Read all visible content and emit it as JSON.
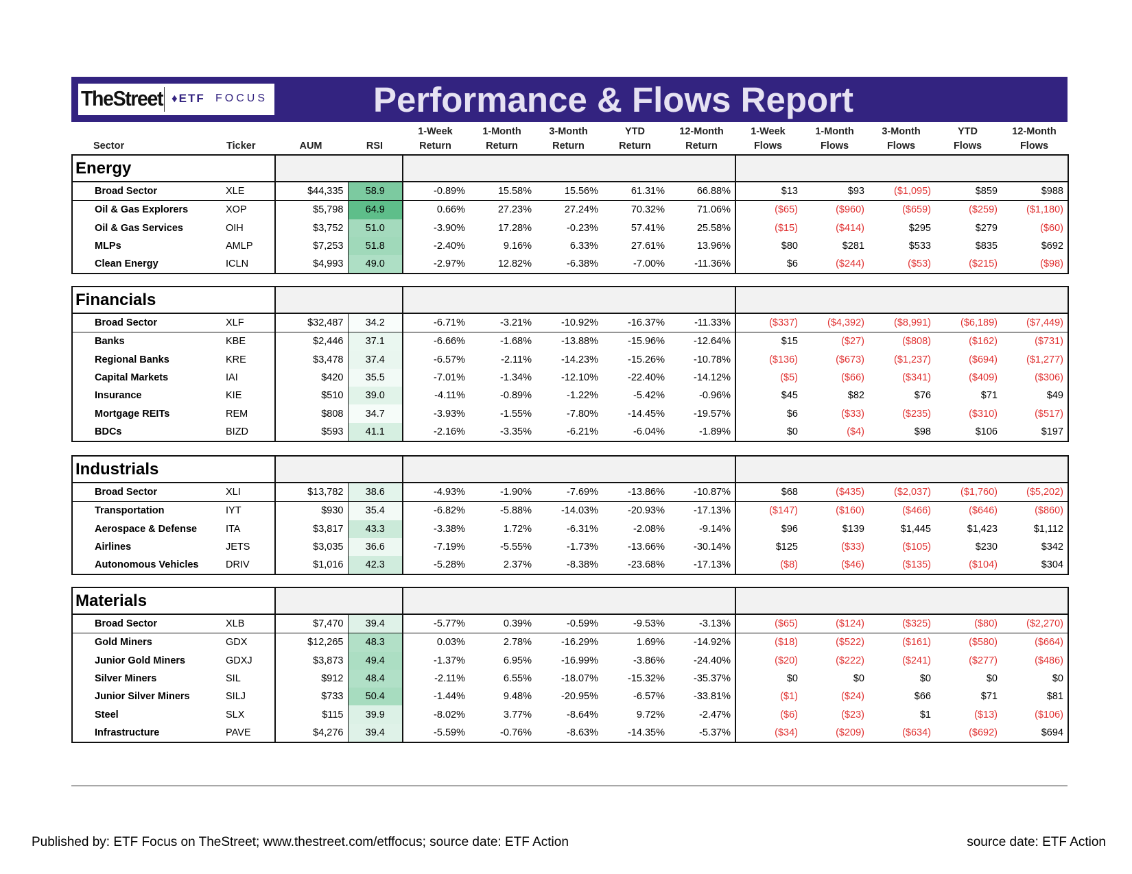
{
  "header": {
    "brand": "TheStreet",
    "partner_mark": "♦ETF",
    "partner_suffix": "FOCUS",
    "title": "Performance & Flows Report"
  },
  "columns": [
    "Sector",
    "Ticker",
    "AUM",
    "RSI",
    "1-Week Return",
    "1-Month Return",
    "3-Month Return",
    "YTD Return",
    "12-Month Return",
    "1-Week Flows",
    "1-Month Flows",
    "3-Month Flows",
    "YTD Flows",
    "12-Month Flows"
  ],
  "column_lines": [
    [
      "",
      "Sector"
    ],
    [
      "",
      "Ticker"
    ],
    [
      "",
      "AUM"
    ],
    [
      "",
      "RSI"
    ],
    [
      "1-Week",
      "Return"
    ],
    [
      "1-Month",
      "Return"
    ],
    [
      "3-Month",
      "Return"
    ],
    [
      "YTD",
      "Return"
    ],
    [
      "12-Month",
      "Return"
    ],
    [
      "1-Week",
      "Flows"
    ],
    [
      "1-Month",
      "Flows"
    ],
    [
      "3-Month",
      "Flows"
    ],
    [
      "YTD",
      "Flows"
    ],
    [
      "12-Month",
      "Flows"
    ]
  ],
  "rsi_color_scale": {
    "low": "#ffffff",
    "high": "#5dbe8a"
  },
  "negative_color": "#e03030",
  "sections": [
    {
      "name": "Energy",
      "rows": [
        [
          "Broad Sector",
          "XLE",
          "$44,335",
          "58.9",
          "-0.89%",
          "15.58%",
          "15.56%",
          "61.31%",
          "66.88%",
          "$13",
          "$93",
          "($1,095)",
          "$859",
          "$988"
        ],
        [
          "Oil & Gas Explorers",
          "XOP",
          "$5,798",
          "64.9",
          "0.66%",
          "27.23%",
          "27.24%",
          "70.32%",
          "71.06%",
          "($65)",
          "($960)",
          "($659)",
          "($259)",
          "($1,180)"
        ],
        [
          "Oil & Gas Services",
          "OIH",
          "$3,752",
          "51.0",
          "-3.90%",
          "17.28%",
          "-0.23%",
          "57.41%",
          "25.58%",
          "($15)",
          "($414)",
          "$295",
          "$279",
          "($60)"
        ],
        [
          "MLPs",
          "AMLP",
          "$7,253",
          "51.8",
          "-2.40%",
          "9.16%",
          "6.33%",
          "27.61%",
          "13.96%",
          "$80",
          "$281",
          "$533",
          "$835",
          "$692"
        ],
        [
          "Clean Energy",
          "ICLN",
          "$4,993",
          "49.0",
          "-2.97%",
          "12.82%",
          "-6.38%",
          "-7.00%",
          "-11.36%",
          "$6",
          "($244)",
          "($53)",
          "($215)",
          "($98)"
        ]
      ]
    },
    {
      "name": "Financials",
      "rows": [
        [
          "Broad Sector",
          "XLF",
          "$32,487",
          "34.2",
          "-6.71%",
          "-3.21%",
          "-10.92%",
          "-16.37%",
          "-11.33%",
          "($337)",
          "($4,392)",
          "($8,991)",
          "($6,189)",
          "($7,449)"
        ],
        [
          "Banks",
          "KBE",
          "$2,446",
          "37.1",
          "-6.66%",
          "-1.68%",
          "-13.88%",
          "-15.96%",
          "-12.64%",
          "$15",
          "($27)",
          "($808)",
          "($162)",
          "($731)"
        ],
        [
          "Regional Banks",
          "KRE",
          "$3,478",
          "37.4",
          "-6.57%",
          "-2.11%",
          "-14.23%",
          "-15.26%",
          "-10.78%",
          "($136)",
          "($673)",
          "($1,237)",
          "($694)",
          "($1,277)"
        ],
        [
          "Capital Markets",
          "IAI",
          "$420",
          "35.5",
          "-7.01%",
          "-1.34%",
          "-12.10%",
          "-22.40%",
          "-14.12%",
          "($5)",
          "($66)",
          "($341)",
          "($409)",
          "($306)"
        ],
        [
          "Insurance",
          "KIE",
          "$510",
          "39.0",
          "-4.11%",
          "-0.89%",
          "-1.22%",
          "-5.42%",
          "-0.96%",
          "$45",
          "$82",
          "$76",
          "$71",
          "$49"
        ],
        [
          "Mortgage REITs",
          "REM",
          "$808",
          "34.7",
          "-3.93%",
          "-1.55%",
          "-7.80%",
          "-14.45%",
          "-19.57%",
          "$6",
          "($33)",
          "($235)",
          "($310)",
          "($517)"
        ],
        [
          "BDCs",
          "BIZD",
          "$593",
          "41.1",
          "-2.16%",
          "-3.35%",
          "-6.21%",
          "-6.04%",
          "-1.89%",
          "$0",
          "($4)",
          "$98",
          "$106",
          "$197"
        ]
      ]
    },
    {
      "name": "Industrials",
      "rows": [
        [
          "Broad Sector",
          "XLI",
          "$13,782",
          "38.6",
          "-4.93%",
          "-1.90%",
          "-7.69%",
          "-13.86%",
          "-10.87%",
          "$68",
          "($435)",
          "($2,037)",
          "($1,760)",
          "($5,202)"
        ],
        [
          "Transportation",
          "IYT",
          "$930",
          "35.4",
          "-6.82%",
          "-5.88%",
          "-14.03%",
          "-20.93%",
          "-17.13%",
          "($147)",
          "($160)",
          "($466)",
          "($646)",
          "($860)"
        ],
        [
          "Aerospace & Defense",
          "ITA",
          "$3,817",
          "43.3",
          "-3.38%",
          "1.72%",
          "-6.31%",
          "-2.08%",
          "-9.14%",
          "$96",
          "$139",
          "$1,445",
          "$1,423",
          "$1,112"
        ],
        [
          "Airlines",
          "JETS",
          "$3,035",
          "36.6",
          "-7.19%",
          "-5.55%",
          "-1.73%",
          "-13.66%",
          "-30.14%",
          "$125",
          "($33)",
          "($105)",
          "$230",
          "$342"
        ],
        [
          "Autonomous Vehicles",
          "DRIV",
          "$1,016",
          "42.3",
          "-5.28%",
          "2.37%",
          "-8.38%",
          "-23.68%",
          "-17.13%",
          "($8)",
          "($46)",
          "($135)",
          "($104)",
          "$304"
        ]
      ]
    },
    {
      "name": "Materials",
      "rows": [
        [
          "Broad Sector",
          "XLB",
          "$7,470",
          "39.4",
          "-5.77%",
          "0.39%",
          "-0.59%",
          "-9.53%",
          "-3.13%",
          "($65)",
          "($124)",
          "($325)",
          "($80)",
          "($2,270)"
        ],
        [
          "Gold Miners",
          "GDX",
          "$12,265",
          "48.3",
          "0.03%",
          "2.78%",
          "-16.29%",
          "1.69%",
          "-14.92%",
          "($18)",
          "($522)",
          "($161)",
          "($580)",
          "($664)"
        ],
        [
          "Junior Gold Miners",
          "GDXJ",
          "$3,873",
          "49.4",
          "-1.37%",
          "6.95%",
          "-16.99%",
          "-3.86%",
          "-24.40%",
          "($20)",
          "($222)",
          "($241)",
          "($277)",
          "($486)"
        ],
        [
          "Silver Miners",
          "SIL",
          "$912",
          "48.4",
          "-2.11%",
          "6.55%",
          "-18.07%",
          "-15.32%",
          "-35.37%",
          "$0",
          "$0",
          "$0",
          "$0",
          "$0"
        ],
        [
          "Junior Silver Miners",
          "SILJ",
          "$733",
          "50.4",
          "-1.44%",
          "9.48%",
          "-20.95%",
          "-6.57%",
          "-33.81%",
          "($1)",
          "($24)",
          "$66",
          "$71",
          "$81"
        ],
        [
          "Steel",
          "SLX",
          "$115",
          "39.9",
          "-8.02%",
          "3.77%",
          "-8.64%",
          "9.72%",
          "-2.47%",
          "($6)",
          "($23)",
          "$1",
          "($13)",
          "($106)"
        ],
        [
          "Infrastructure",
          "PAVE",
          "$4,276",
          "39.4",
          "-5.59%",
          "-0.76%",
          "-8.63%",
          "-14.35%",
          "-5.37%",
          "($34)",
          "($209)",
          "($634)",
          "($692)",
          "$694"
        ]
      ]
    }
  ],
  "footer": {
    "published": "Published by: ETF Focus on TheStreet; www.thestreet.com/etffocus; source date: ETF Action",
    "source": "source date: ETF Action"
  }
}
